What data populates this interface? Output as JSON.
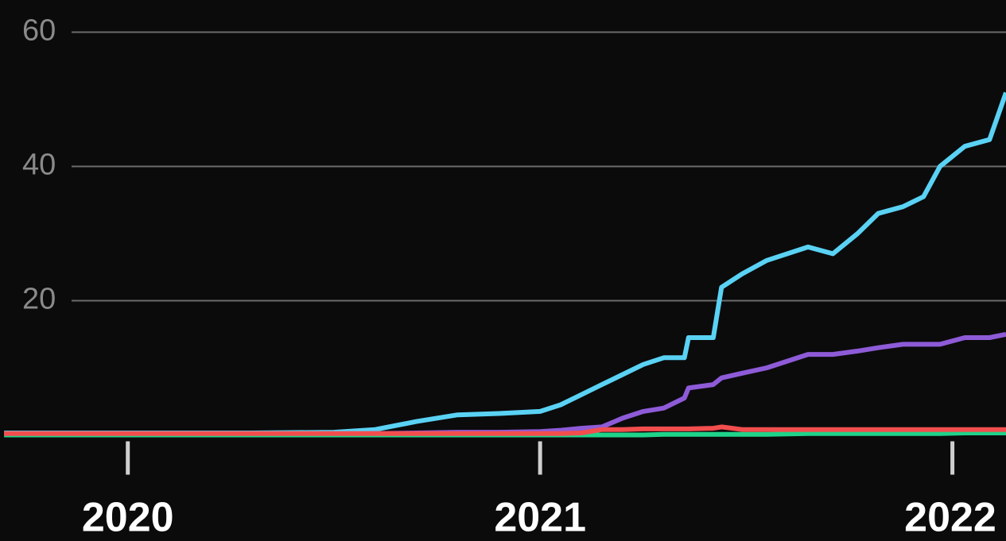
{
  "chart_data": {
    "type": "line",
    "x": [
      2019.7,
      2020.0,
      2020.3,
      2020.5,
      2020.6,
      2020.7,
      2020.8,
      2020.9,
      2021.0,
      2021.05,
      2021.1,
      2021.15,
      2021.2,
      2021.25,
      2021.3,
      2021.35,
      2021.36,
      2021.42,
      2021.44,
      2021.49,
      2021.55,
      2021.65,
      2021.71,
      2021.77,
      2021.82,
      2021.88,
      2021.93,
      2021.97,
      2022.03,
      2022.09,
      2022.13
    ],
    "series": [
      {
        "color": "#5ad2f4",
        "values": [
          0.3,
          0.3,
          0.3,
          0.4,
          0.8,
          2,
          3,
          3.2,
          3.5,
          4.5,
          6,
          7.5,
          9,
          10.5,
          11.5,
          11.5,
          14.5,
          14.5,
          22,
          24,
          26,
          28,
          27,
          30,
          33,
          34,
          35.5,
          40,
          43,
          44,
          51
        ]
      },
      {
        "color": "#8e5bd8",
        "values": [
          0.1,
          0.1,
          0.1,
          0.1,
          0.2,
          0.3,
          0.4,
          0.4,
          0.5,
          0.7,
          1,
          1.2,
          2.5,
          3.5,
          4,
          5.5,
          7,
          7.5,
          8.5,
          9.2,
          10,
          12,
          12,
          12.5,
          13,
          13.5,
          13.5,
          13.5,
          14.5,
          14.5,
          15
        ]
      },
      {
        "color": "#1fd38a",
        "values": [
          0,
          0,
          0,
          0,
          0,
          0,
          0,
          0,
          0,
          0,
          0,
          0,
          0,
          0,
          0.1,
          0.1,
          0.1,
          0.1,
          0.1,
          0.1,
          0.1,
          0.2,
          0.2,
          0.2,
          0.2,
          0.2,
          0.2,
          0.2,
          0.3,
          0.3,
          0.3
        ]
      },
      {
        "color": "#f24e4e",
        "values": [
          0.2,
          0.2,
          0.2,
          0.2,
          0.2,
          0.2,
          0.2,
          0.2,
          0.2,
          0.2,
          0.3,
          0.8,
          0.8,
          0.9,
          0.9,
          0.9,
          0.9,
          1.0,
          1.2,
          0.8,
          0.8,
          0.8,
          0.8,
          0.8,
          0.8,
          0.8,
          0.8,
          0.8,
          0.8,
          0.8,
          0.8
        ]
      }
    ],
    "xlim": [
      2019.69,
      2022.13
    ],
    "xticks": [
      2020,
      2021,
      2022
    ],
    "ylim": [
      -15.8,
      64.8
    ],
    "yticks": [
      20,
      40,
      60
    ],
    "grid": true
  }
}
